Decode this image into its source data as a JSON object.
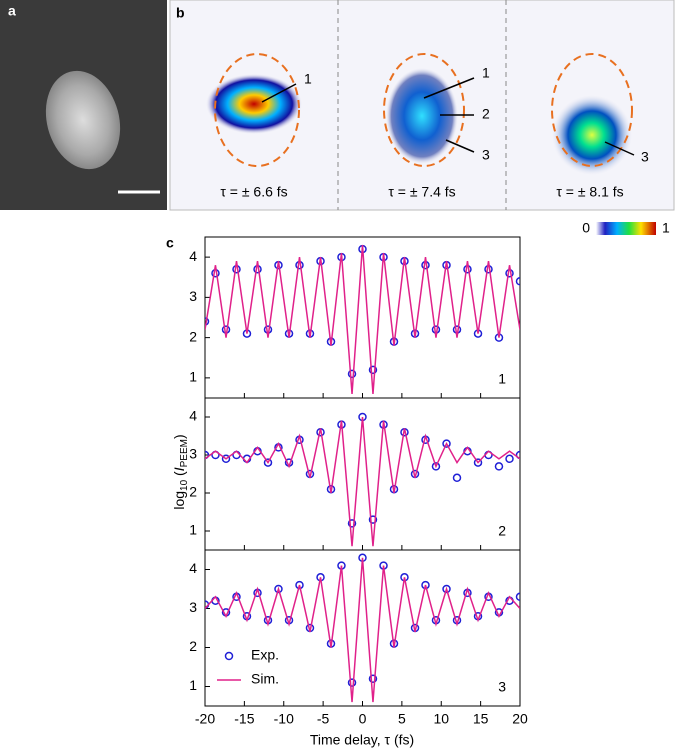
{
  "panels": {
    "a": {
      "label": "a"
    },
    "b": {
      "label": "b",
      "images": [
        {
          "caption": "τ = ± 6.6 fs",
          "markers": [
            "1"
          ]
        },
        {
          "caption": "τ = ± 7.4 fs",
          "markers": [
            "1",
            "2",
            "3"
          ]
        },
        {
          "caption": "τ = ± 8.1 fs",
          "markers": [
            "3"
          ]
        }
      ],
      "colorbar": {
        "min": "0",
        "max": "1"
      }
    },
    "c": {
      "label": "c"
    }
  },
  "chart_data": {
    "type": "line",
    "x_label": "Time delay, τ (fs)",
    "y_label": [
      "log",
      "10",
      " (",
      "I",
      "PEEM",
      ")"
    ],
    "x": [
      -20,
      -18.67,
      -17.33,
      -16,
      -14.67,
      -13.33,
      -12,
      -10.67,
      -9.33,
      -8,
      -6.67,
      -5.33,
      -4,
      -2.67,
      -1.33,
      0,
      1.33,
      2.67,
      4,
      5.33,
      6.67,
      8,
      9.33,
      10.67,
      12,
      13.33,
      14.67,
      16,
      17.33,
      18.67,
      20
    ],
    "xlim": [
      -20,
      20
    ],
    "xticks": [
      -20,
      -15,
      -10,
      -5,
      0,
      5,
      10,
      15,
      20
    ],
    "ylim": [
      0.5,
      4.5
    ],
    "yticks": [
      1,
      2,
      3,
      4
    ],
    "legend": "lower left",
    "subplots": [
      {
        "label": "1",
        "series": [
          {
            "name": "Exp.",
            "color": "#1f1fd6",
            "marker": "circle",
            "values": [
              2.4,
              3.6,
              2.2,
              3.7,
              2.1,
              3.7,
              2.2,
              3.8,
              2.1,
              3.8,
              2.1,
              3.9,
              1.9,
              4.0,
              1.1,
              4.2,
              1.2,
              4.0,
              1.9,
              3.9,
              2.1,
              3.8,
              2.2,
              3.8,
              2.2,
              3.7,
              2.1,
              3.7,
              2.0,
              3.6,
              3.4
            ]
          },
          {
            "name": "Sim.",
            "color": "#e0218a",
            "values": [
              2.2,
              3.8,
              2.0,
              3.9,
              2.1,
              3.9,
              2.0,
              3.9,
              2.0,
              4.0,
              2.0,
              4.0,
              1.8,
              4.1,
              0.6,
              4.3,
              0.6,
              4.1,
              1.8,
              4.0,
              2.0,
              4.0,
              2.0,
              3.9,
              2.0,
              3.9,
              2.1,
              3.9,
              2.0,
              3.8,
              2.2
            ]
          }
        ]
      },
      {
        "label": "2",
        "series": [
          {
            "name": "Exp.",
            "color": "#1f1fd6",
            "marker": "circle",
            "values": [
              3.0,
              3.0,
              2.9,
              3.0,
              2.9,
              3.1,
              2.8,
              3.2,
              2.8,
              3.4,
              2.5,
              3.6,
              2.1,
              3.8,
              1.2,
              4.0,
              1.3,
              3.8,
              2.1,
              3.6,
              2.5,
              3.4,
              2.7,
              3.3,
              2.4,
              3.1,
              2.8,
              3.0,
              2.7,
              2.9,
              3.0
            ]
          },
          {
            "name": "Sim.",
            "color": "#e0218a",
            "values": [
              2.9,
              3.1,
              2.9,
              3.1,
              2.8,
              3.2,
              2.8,
              3.3,
              2.7,
              3.5,
              2.4,
              3.7,
              2.0,
              3.9,
              0.6,
              4.0,
              0.6,
              3.9,
              2.0,
              3.7,
              2.4,
              3.5,
              2.7,
              3.3,
              2.8,
              3.2,
              2.8,
              3.1,
              2.9,
              3.1,
              2.9
            ]
          }
        ]
      },
      {
        "label": "3",
        "series": [
          {
            "name": "Exp.",
            "color": "#1f1fd6",
            "marker": "circle",
            "values": [
              3.1,
              3.2,
              2.9,
              3.3,
              2.8,
              3.4,
              2.7,
              3.5,
              2.7,
              3.6,
              2.5,
              3.8,
              2.1,
              4.1,
              1.1,
              4.3,
              1.2,
              4.1,
              2.1,
              3.8,
              2.5,
              3.6,
              2.7,
              3.5,
              2.7,
              3.4,
              2.8,
              3.3,
              2.9,
              3.2,
              3.3
            ]
          },
          {
            "name": "Sim.",
            "color": "#e0218a",
            "values": [
              3.0,
              3.3,
              2.8,
              3.4,
              2.7,
              3.5,
              2.6,
              3.5,
              2.6,
              3.6,
              2.4,
              3.8,
              2.0,
              4.1,
              0.6,
              4.3,
              0.6,
              4.1,
              2.0,
              3.8,
              2.4,
              3.6,
              2.6,
              3.5,
              2.6,
              3.5,
              2.7,
              3.4,
              2.8,
              3.3,
              3.0
            ]
          }
        ]
      }
    ]
  }
}
